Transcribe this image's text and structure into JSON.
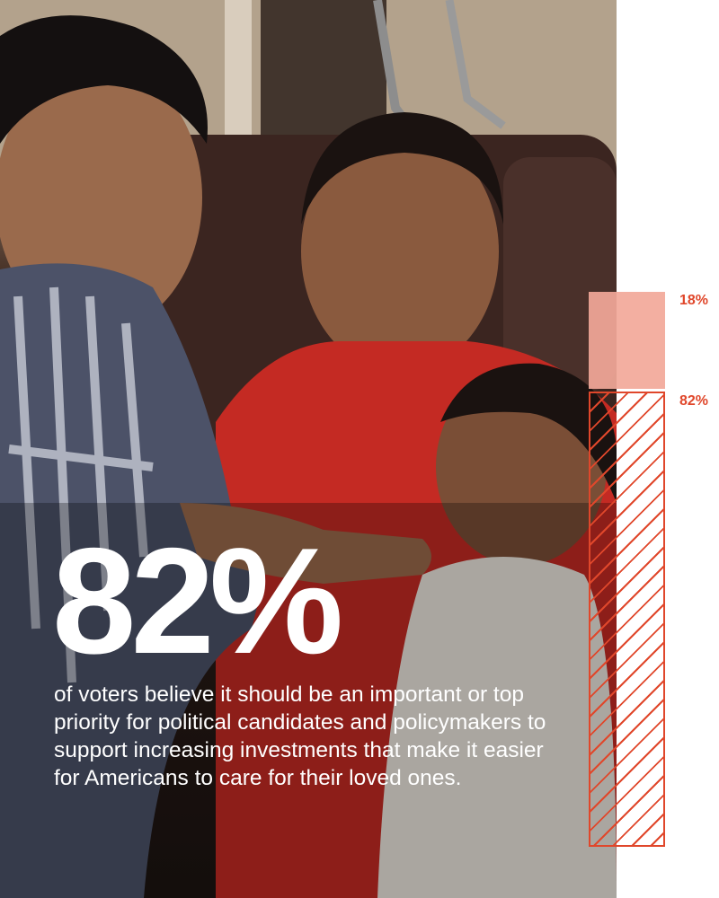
{
  "headline": {
    "stat": "82%"
  },
  "caption": "of voters believe it should be an important or top priority for political candidates and policymakers to support increasing investments that make it easier for Americans to care for their loved ones.",
  "chart_data": {
    "type": "bar",
    "stacked": true,
    "categories": [
      ""
    ],
    "series": [
      {
        "value": 18,
        "label": "18%",
        "style": "solid",
        "color": "#f2a899"
      },
      {
        "value": 82,
        "label": "82%",
        "style": "hatched",
        "color": "#e0472b"
      }
    ],
    "ylim": [
      0,
      100
    ]
  },
  "photo": {
    "description_icon": "family-photo",
    "colors": {
      "background_wall": "#b9a892",
      "sofa": "#3a2622",
      "shirt_red": "#c42a23",
      "dress_white": "#ece6de"
    }
  },
  "accent_color": "#e0472b"
}
